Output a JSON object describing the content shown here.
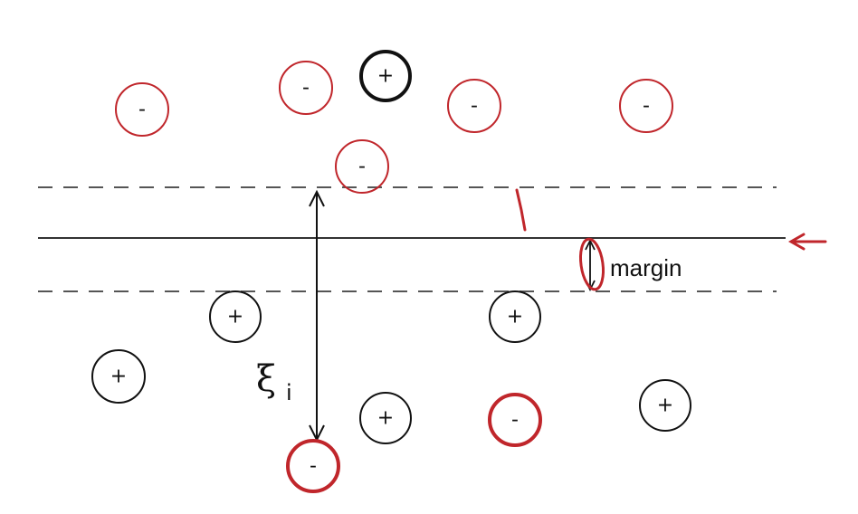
{
  "labels": {
    "margin": "margin",
    "slack": "ξ",
    "slack_subscript": "i"
  },
  "points": [
    {
      "sign": "-",
      "style": "red-thin"
    },
    {
      "sign": "-",
      "style": "red-thin"
    },
    {
      "sign": "+",
      "style": "black-bold"
    },
    {
      "sign": "-",
      "style": "red-thin"
    },
    {
      "sign": "-",
      "style": "red-thin"
    },
    {
      "sign": "-",
      "style": "red-thin"
    },
    {
      "sign": "+",
      "style": "black"
    },
    {
      "sign": "+",
      "style": "black"
    },
    {
      "sign": "+",
      "style": "black"
    },
    {
      "sign": "+",
      "style": "black"
    },
    {
      "sign": "+",
      "style": "black"
    },
    {
      "sign": "-",
      "style": "red-bold"
    },
    {
      "sign": "-",
      "style": "red-bold"
    }
  ],
  "colors": {
    "red": "#c0262b",
    "black": "#111111",
    "dashed": "#555555"
  }
}
